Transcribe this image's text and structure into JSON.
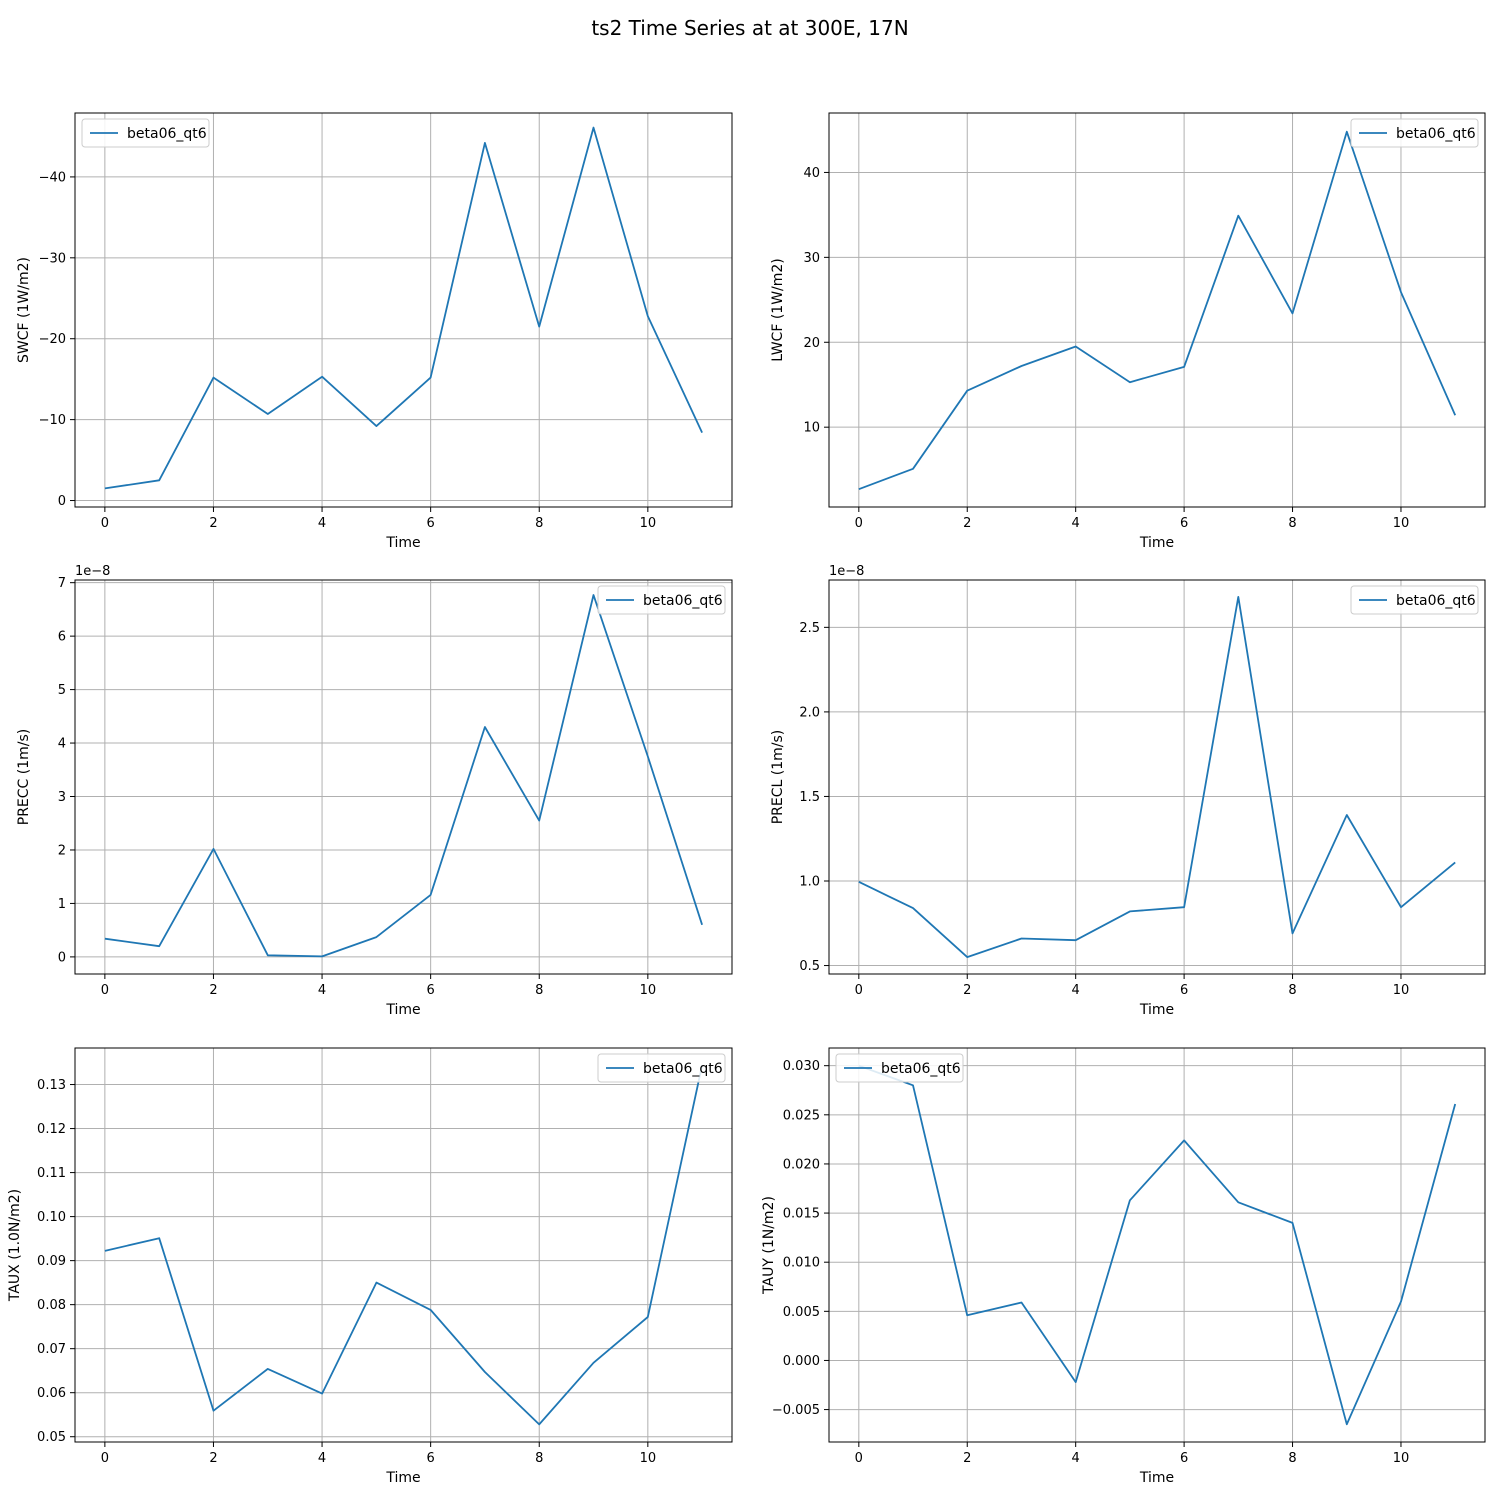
{
  "figure": {
    "title": "ts2 Time Series at at 300E, 17N"
  },
  "colors": {
    "series": "#1f77b4",
    "grid": "#b0b0b0",
    "axes": "#000000"
  },
  "chart_data": [
    {
      "type": "line",
      "ylabel": "SWCF (1W/m2)",
      "xlabel": "Time",
      "xlim": [
        -0.55,
        11.55
      ],
      "ylim": [
        0.8,
        -47.9
      ],
      "y_inverted": true,
      "xticks": [
        0,
        2,
        4,
        6,
        8,
        10
      ],
      "xtick_labels": [
        "0",
        "2",
        "4",
        "6",
        "8",
        "10"
      ],
      "yticks": [
        0,
        -10,
        -20,
        -30,
        -40
      ],
      "ytick_labels": [
        "0",
        "−10",
        "−20",
        "−30",
        "−40"
      ],
      "offset_label": "",
      "legend": {
        "position": "upper-left",
        "labels": [
          "beta06_qt6"
        ]
      },
      "grid": true,
      "series": [
        {
          "name": "beta06_qt6",
          "x": [
            0,
            1,
            2,
            3,
            4,
            5,
            6,
            7,
            8,
            9,
            10,
            11
          ],
          "values": [
            -1.5,
            -2.5,
            -15.2,
            -10.7,
            -15.3,
            -9.2,
            -15.2,
            -44.2,
            -21.5,
            -46.1,
            -22.8,
            -8.4
          ]
        }
      ]
    },
    {
      "type": "line",
      "ylabel": "LWCF (1W/m2)",
      "xlabel": "Time",
      "xlim": [
        -0.55,
        11.55
      ],
      "ylim": [
        0.6,
        47.0
      ],
      "y_inverted": true,
      "xticks": [
        0,
        2,
        4,
        6,
        8,
        10
      ],
      "xtick_labels": [
        "0",
        "2",
        "4",
        "6",
        "8",
        "10"
      ],
      "yticks": [
        10,
        20,
        30,
        40
      ],
      "ytick_labels": [
        "10",
        "20",
        "30",
        "40"
      ],
      "offset_label": "",
      "legend": {
        "position": "upper-right",
        "labels": [
          "beta06_qt6"
        ]
      },
      "grid": true,
      "series": [
        {
          "name": "beta06_qt6",
          "x": [
            0,
            1,
            2,
            3,
            4,
            5,
            6,
            7,
            8,
            9,
            10,
            11
          ],
          "values": [
            2.7,
            5.1,
            14.3,
            17.2,
            19.5,
            15.3,
            17.1,
            34.9,
            23.4,
            44.8,
            25.9,
            11.4
          ]
        }
      ]
    },
    {
      "type": "line",
      "ylabel": "PRECC (1m/s)",
      "xlabel": "Time",
      "xlim": [
        -0.55,
        11.55
      ],
      "ylim": [
        -0.32,
        7.05
      ],
      "y_inverted": true,
      "xticks": [
        0,
        2,
        4,
        6,
        8,
        10
      ],
      "xtick_labels": [
        "0",
        "2",
        "4",
        "6",
        "8",
        "10"
      ],
      "yticks": [
        0,
        1,
        2,
        3,
        4,
        5,
        6,
        7
      ],
      "ytick_labels": [
        "0",
        "1",
        "2",
        "3",
        "4",
        "5",
        "6",
        "7"
      ],
      "offset_label": "1e−8",
      "legend": {
        "position": "upper-right",
        "labels": [
          "beta06_qt6"
        ]
      },
      "grid": true,
      "series": [
        {
          "name": "beta06_qt6",
          "x": [
            0,
            1,
            2,
            3,
            4,
            5,
            6,
            7,
            8,
            9,
            10,
            11
          ],
          "values": [
            0.34,
            0.2,
            2.02,
            0.03,
            0.01,
            0.37,
            1.16,
            4.3,
            2.55,
            6.77,
            3.75,
            0.6
          ]
        }
      ]
    },
    {
      "type": "line",
      "ylabel": "PRECL (1m/s)",
      "xlabel": "Time",
      "xlim": [
        -0.55,
        11.55
      ],
      "ylim": [
        0.45,
        2.78
      ],
      "y_inverted": true,
      "xticks": [
        0,
        2,
        4,
        6,
        8,
        10
      ],
      "xtick_labels": [
        "0",
        "2",
        "4",
        "6",
        "8",
        "10"
      ],
      "yticks": [
        0.5,
        1.0,
        1.5,
        2.0,
        2.5
      ],
      "ytick_labels": [
        "0.5",
        "1.0",
        "1.5",
        "2.0",
        "2.5"
      ],
      "offset_label": "1e−8",
      "legend": {
        "position": "upper-right",
        "labels": [
          "beta06_qt6"
        ]
      },
      "grid": true,
      "series": [
        {
          "name": "beta06_qt6",
          "x": [
            0,
            1,
            2,
            3,
            4,
            5,
            6,
            7,
            8,
            9,
            10,
            11
          ],
          "values": [
            0.995,
            0.84,
            0.55,
            0.66,
            0.65,
            0.82,
            0.845,
            2.68,
            0.69,
            1.39,
            0.845,
            1.11
          ]
        }
      ]
    },
    {
      "type": "line",
      "ylabel": "TAUX (1.0N/m2)",
      "xlabel": "Time",
      "xlim": [
        -0.55,
        11.55
      ],
      "ylim": [
        0.0488,
        0.1383
      ],
      "y_inverted": true,
      "xticks": [
        0,
        2,
        4,
        6,
        8,
        10
      ],
      "xtick_labels": [
        "0",
        "2",
        "4",
        "6",
        "8",
        "10"
      ],
      "yticks": [
        0.05,
        0.06,
        0.07,
        0.08,
        0.09,
        0.1,
        0.11,
        0.12,
        0.13
      ],
      "ytick_labels": [
        "0.05",
        "0.06",
        "0.07",
        "0.08",
        "0.09",
        "0.10",
        "0.11",
        "0.12",
        "0.13"
      ],
      "offset_label": "",
      "legend": {
        "position": "upper-right",
        "labels": [
          "beta06_qt6"
        ]
      },
      "grid": true,
      "series": [
        {
          "name": "beta06_qt6",
          "x": [
            0,
            1,
            2,
            3,
            4,
            5,
            6,
            7,
            8,
            9,
            10,
            11
          ],
          "values": [
            0.0922,
            0.0951,
            0.0559,
            0.0654,
            0.0598,
            0.085,
            0.0788,
            0.0647,
            0.0528,
            0.0668,
            0.0772,
            0.1344
          ]
        }
      ]
    },
    {
      "type": "line",
      "ylabel": "TAUY (1N/m2)",
      "xlabel": "Time",
      "xlim": [
        -0.55,
        11.55
      ],
      "ylim": [
        -0.0083,
        0.0318
      ],
      "y_inverted": true,
      "xticks": [
        0,
        2,
        4,
        6,
        8,
        10
      ],
      "xtick_labels": [
        "0",
        "2",
        "4",
        "6",
        "8",
        "10"
      ],
      "yticks": [
        -0.005,
        0.0,
        0.005,
        0.01,
        0.015,
        0.02,
        0.025,
        0.03
      ],
      "ytick_labels": [
        "−0.005",
        "0.000",
        "0.005",
        "0.010",
        "0.015",
        "0.020",
        "0.025",
        "0.030"
      ],
      "offset_label": "",
      "legend": {
        "position": "upper-left",
        "labels": [
          "beta06_qt6"
        ]
      },
      "grid": true,
      "series": [
        {
          "name": "beta06_qt6",
          "x": [
            0,
            1,
            2,
            3,
            4,
            5,
            6,
            7,
            8,
            9,
            10,
            11
          ],
          "values": [
            0.03,
            0.028,
            0.0046,
            0.0059,
            -0.0022,
            0.0163,
            0.0224,
            0.0161,
            0.014,
            -0.0065,
            0.006,
            0.0261
          ]
        }
      ]
    }
  ]
}
